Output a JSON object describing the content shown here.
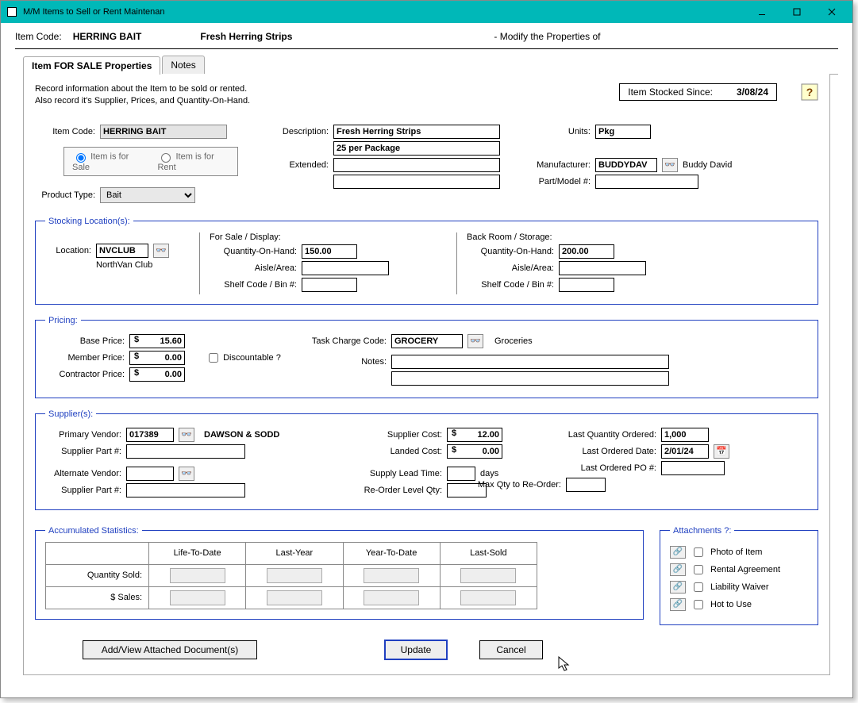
{
  "window": {
    "title": "M/M Items to Sell or Rent Maintenan"
  },
  "header": {
    "item_code_label": "Item Code:",
    "item_code": "HERRING BAIT",
    "desc": "Fresh Herring Strips",
    "modify": "- Modify the Properties of"
  },
  "tabs": {
    "sale": "Item FOR SALE Properties",
    "notes": "Notes"
  },
  "intro": {
    "line1": "Record information about the Item to be sold or rented.",
    "line2": "Also record it's Supplier, Prices, and Quantity-On-Hand.",
    "stocked_label": "Item Stocked Since:",
    "stocked": "3/08/24"
  },
  "top": {
    "item_code_label": "Item Code:",
    "item_code": "HERRING BAIT",
    "for_sale": "Item is for Sale",
    "for_rent": "Item is for Rent",
    "product_type_label": "Product Type:",
    "product_type": "Bait",
    "description_label": "Description:",
    "description1": "Fresh Herring Strips",
    "description2": "25 per Package",
    "extended_label": "Extended:",
    "extended1": "",
    "extended2": "",
    "units_label": "Units:",
    "units": "Pkg",
    "manufacturer_label": "Manufacturer:",
    "manufacturer": "BUDDYDAV",
    "manufacturer_name": "Buddy David",
    "part_label": "Part/Model #:",
    "part": ""
  },
  "stock": {
    "legend": "Stocking Location(s):",
    "location_label": "Location:",
    "location": "NVCLUB",
    "location_name": "NorthVan Club",
    "sale_header": "For Sale / Display:",
    "back_header": "Back Room / Storage:",
    "qoh_label": "Quantity-On-Hand:",
    "aisle_label": "Aisle/Area:",
    "shelf_label": "Shelf Code / Bin #:",
    "sale_qoh": "150.00",
    "sale_aisle": "",
    "sale_shelf": "",
    "back_qoh": "200.00",
    "back_aisle": "",
    "back_shelf": ""
  },
  "pricing": {
    "legend": "Pricing:",
    "base_label": "Base Price:",
    "base": "15.60",
    "member_label": "Member Price:",
    "member": "0.00",
    "contractor_label": "Contractor Price:",
    "contractor": "0.00",
    "discountable": "Discountable ?",
    "task_label": "Task Charge Code:",
    "task": "GROCERY",
    "task_name": "Groceries",
    "notes_label": "Notes:",
    "notes1": "",
    "notes2": ""
  },
  "supplier": {
    "legend": "Supplier(s):",
    "primary_label": "Primary Vendor:",
    "primary": "017389",
    "primary_name": "DAWSON & SODD",
    "part1_label": "Supplier Part #:",
    "part1": "",
    "alt_label": "Alternate Vendor:",
    "alt": "",
    "part2_label": "Supplier Part #:",
    "part2": "",
    "cost_label": "Supplier Cost:",
    "cost": "12.00",
    "landed_label": "Landed Cost:",
    "landed": "0.00",
    "lead_label": "Supply Lead Time:",
    "lead": "",
    "days": "days",
    "reorder_label": "Re-Order Level Qty:",
    "reorder": "",
    "maxqty_label": "Max Qty to Re-Order:",
    "maxqty": "",
    "lastqty_label": "Last Quantity Ordered:",
    "lastqty": "1,000",
    "lastdate_label": "Last Ordered Date:",
    "lastdate": "2/01/24",
    "lastpo_label": "Last Ordered PO #:",
    "lastpo": ""
  },
  "stats": {
    "legend": "Accumulated Statistics:",
    "cols": [
      "Life-To-Date",
      "Last-Year",
      "Year-To-Date",
      "Last-Sold"
    ],
    "rows": [
      "Quantity Sold:",
      "$ Sales:"
    ]
  },
  "attachments": {
    "legend": "Attachments ?:",
    "items": [
      "Photo of Item",
      "Rental Agreement",
      "Liability Waiver",
      "Hot to Use"
    ]
  },
  "buttons": {
    "addview": "Add/View Attached Document(s)",
    "update": "Update",
    "cancel": "Cancel"
  }
}
